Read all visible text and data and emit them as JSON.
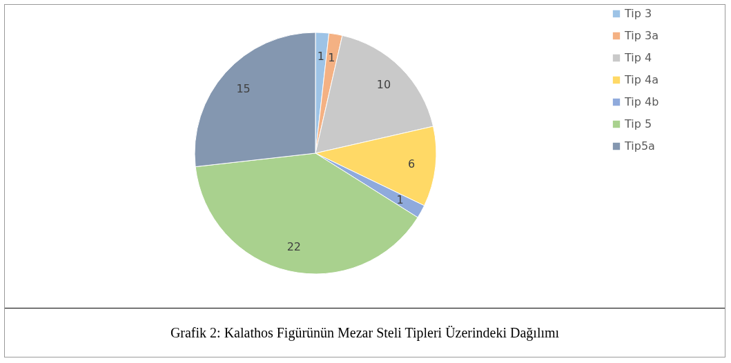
{
  "chart_data": {
    "type": "pie",
    "categories": [
      "Tip 3",
      "Tip 3a",
      "Tip 4",
      "Tip 4a",
      "Tip 4b",
      "Tip 5",
      "Tip5a"
    ],
    "values": [
      1,
      1,
      10,
      6,
      1,
      22,
      15
    ],
    "colors": [
      "#9dc3e6",
      "#f4b183",
      "#c9c9c9",
      "#ffd966",
      "#8faadc",
      "#a9d18e",
      "#8497b0"
    ],
    "data_labels": true,
    "legend": "right",
    "annotations": [
      "Grafik 2: Kalathos Figürünün Mezar Steli Tipleri Üzerindeki Dağılımı"
    ]
  }
}
